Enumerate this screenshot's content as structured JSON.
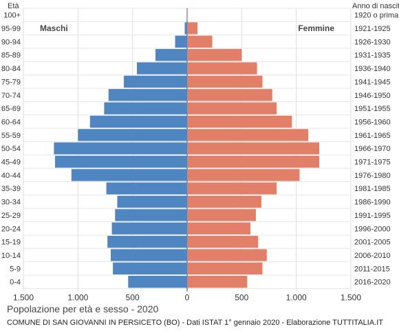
{
  "chart_data": {
    "type": "bar",
    "orientation": "horizontal",
    "title": "Popolazione per età e sesso - 2020",
    "subtitle": "COMUNE DI SAN GIOVANNI IN PERSICETO (BO) - Dati ISTAT 1° gennaio 2020 - Elaborazione TUTTITALIA.IT",
    "left_axis_title": "Età",
    "right_axis_title": "Anno di nascita",
    "categories": [
      "100+",
      "95-99",
      "90-94",
      "85-89",
      "80-84",
      "75-79",
      "70-74",
      "65-69",
      "60-64",
      "55-59",
      "50-54",
      "45-49",
      "40-44",
      "35-39",
      "30-34",
      "25-29",
      "20-24",
      "15-19",
      "10-14",
      "5-9",
      "0-4"
    ],
    "birth_years": [
      "1920 o prima",
      "1921-1925",
      "1926-1930",
      "1931-1935",
      "1936-1940",
      "1941-1945",
      "1946-1950",
      "1951-1955",
      "1956-1960",
      "1961-1965",
      "1966-1970",
      "1971-1975",
      "1976-1980",
      "1981-1985",
      "1986-1990",
      "1991-1995",
      "1996-2000",
      "2001-2005",
      "2006-2010",
      "2011-2015",
      "2016-2020"
    ],
    "series": [
      {
        "name": "Maschi",
        "color": "#4f86c1",
        "values": [
          2,
          22,
          110,
          290,
          460,
          580,
          720,
          760,
          890,
          1000,
          1220,
          1210,
          1060,
          740,
          640,
          660,
          690,
          730,
          700,
          680,
          540
        ]
      },
      {
        "name": "Femmine",
        "color": "#e17f69",
        "values": [
          5,
          95,
          230,
          500,
          640,
          690,
          780,
          820,
          960,
          1110,
          1210,
          1210,
          1030,
          820,
          680,
          630,
          580,
          650,
          730,
          690,
          550
        ]
      }
    ],
    "x_ticks": [
      "1.500",
      "1.000",
      "500",
      "0",
      "500",
      "1.000",
      "1.500"
    ],
    "xlim": [
      -1500,
      1500
    ],
    "grid": true
  }
}
